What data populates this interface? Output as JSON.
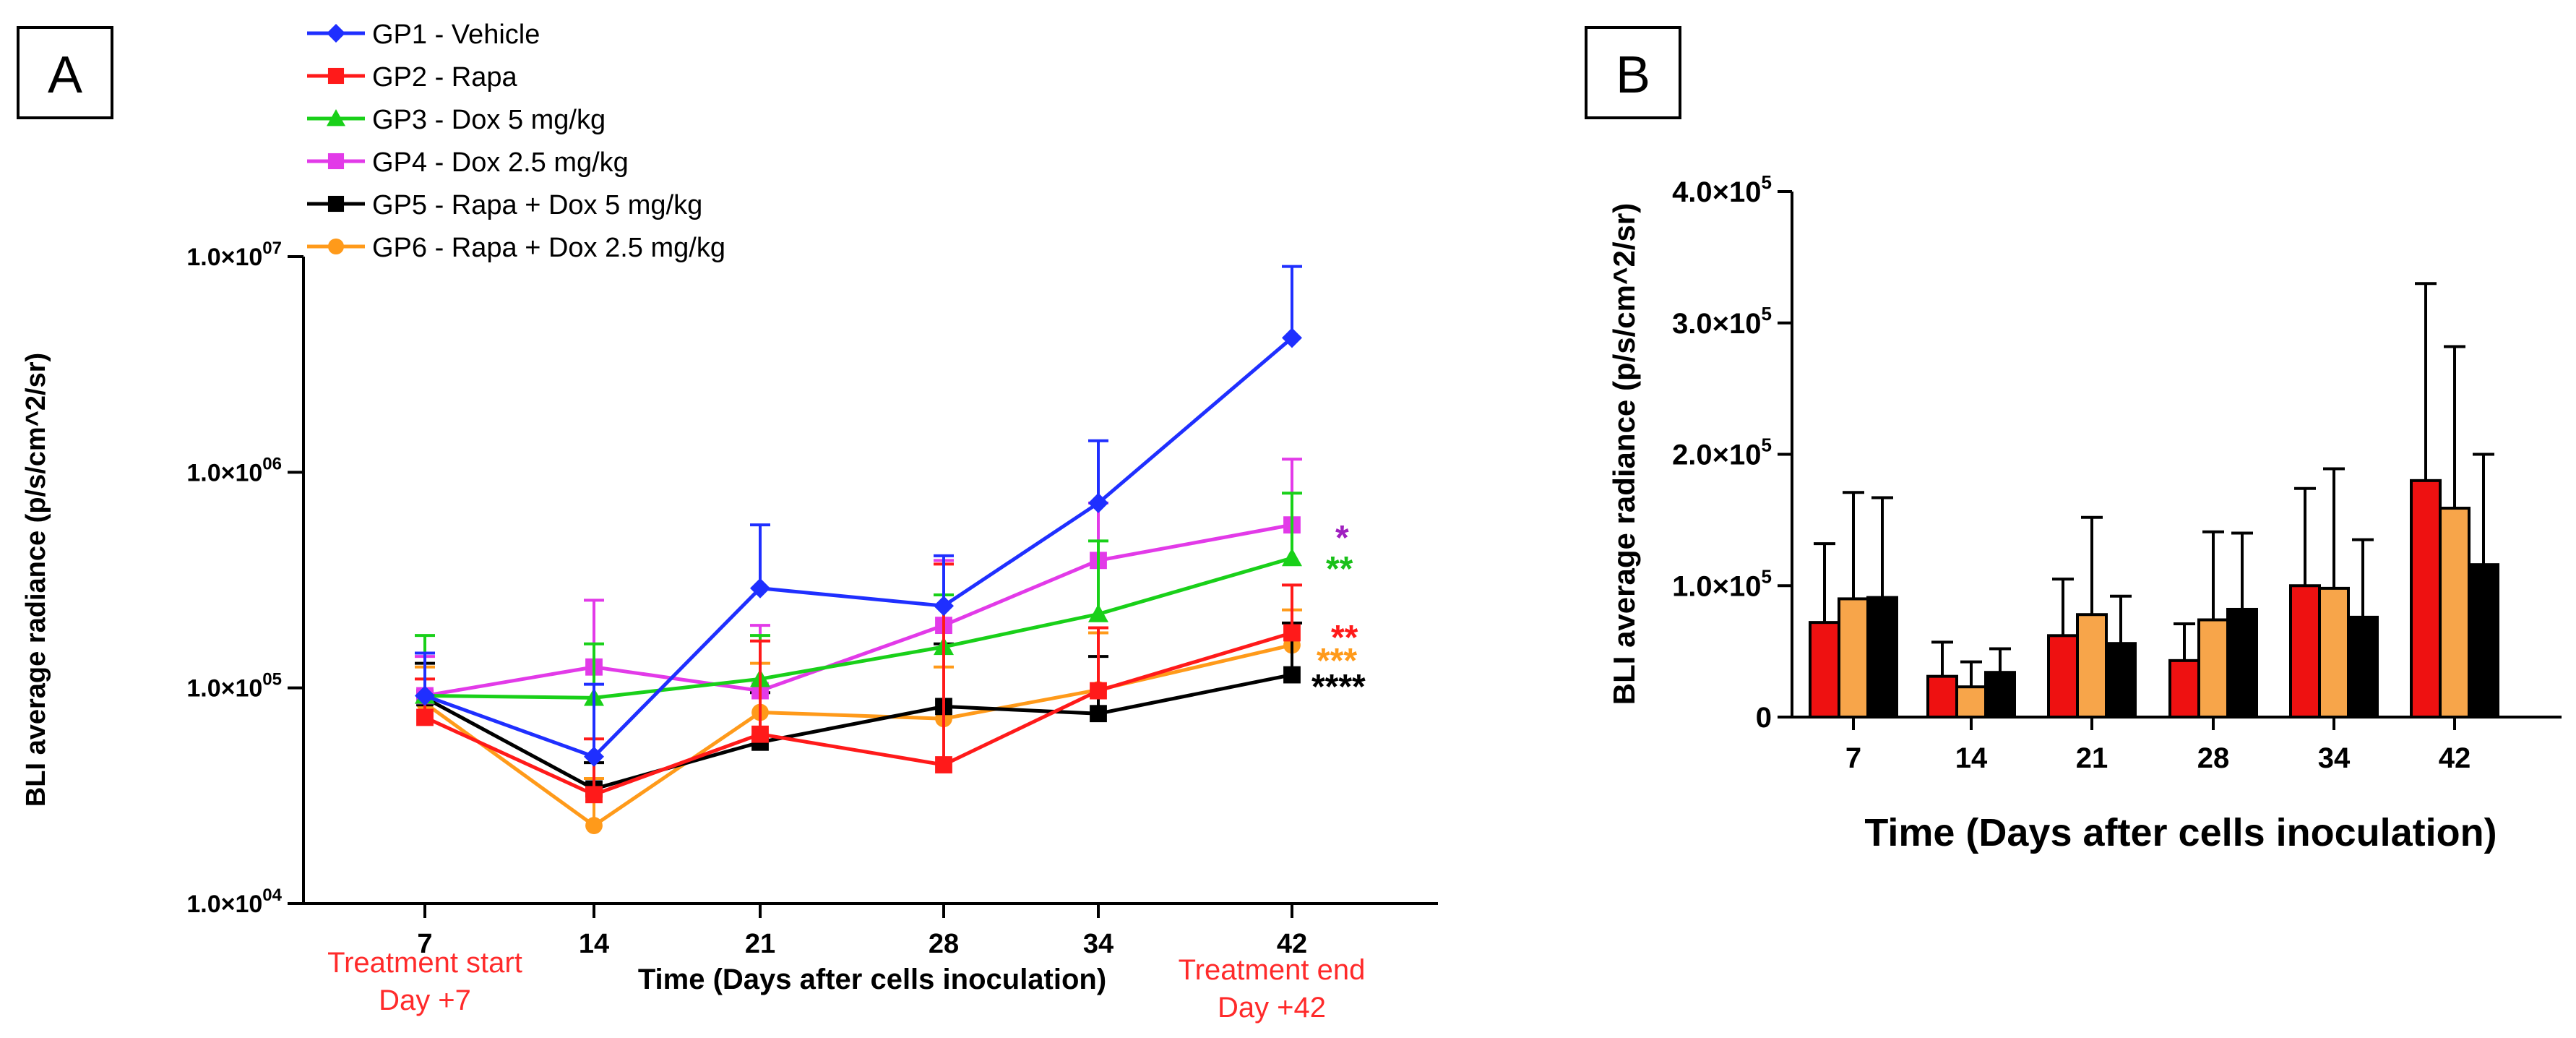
{
  "chart_data": [
    {
      "panel": "A",
      "type": "line",
      "yscale": "log",
      "ylabel": "BLI average radiance (p/s/cm^2/sr)",
      "xlabel": "Time (Days after cells inoculation)",
      "y_ticks": [
        {
          "value": 10000,
          "label": "1.0×10",
          "exp": "04"
        },
        {
          "value": 100000,
          "label": "1.0×10",
          "exp": "05"
        },
        {
          "value": 1000000,
          "label": "1.0×10",
          "exp": "06"
        },
        {
          "value": 10000000,
          "label": "1.0×10",
          "exp": "07"
        }
      ],
      "x": [
        7,
        14,
        21,
        28,
        34,
        42
      ],
      "x_labels": [
        "7",
        "14",
        "21",
        "28",
        "34",
        "42"
      ],
      "annotations": {
        "start": [
          "Treatment start",
          "Day +7"
        ],
        "end": [
          "Treatment end",
          "Day +42"
        ]
      },
      "series": [
        {
          "name": "GP1 - Vehicle",
          "color": "#1f2fff",
          "marker": "diamond",
          "values": [
            92000,
            48000,
            290000,
            240000,
            720000,
            4200000
          ],
          "errors": [
            145000,
            104000,
            570000,
            410000,
            1400000,
            9000000
          ],
          "sig": ""
        },
        {
          "name": "GP2 - Rapa",
          "color": "#ff1a1a",
          "marker": "square",
          "values": [
            73000,
            32000,
            61000,
            44000,
            97000,
            180000
          ],
          "errors": [
            110000,
            58000,
            165000,
            375000,
            190000,
            300000
          ],
          "sig": "**"
        },
        {
          "name": "GP3 - Dox 5 mg/kg",
          "color": "#19d019",
          "marker": "triangle",
          "values": [
            92000,
            90000,
            110000,
            155000,
            220000,
            400000
          ],
          "errors": [
            175000,
            160000,
            175000,
            270000,
            480000,
            800000
          ],
          "sig": "**"
        },
        {
          "name": "GP4 - Dox 2.5 mg/kg",
          "color": "#e23ae8",
          "marker": "square",
          "values": [
            92000,
            125000,
            97000,
            195000,
            390000,
            570000
          ],
          "errors": [
            140000,
            255000,
            195000,
            390000,
            720000,
            1150000
          ],
          "sig": "*"
        },
        {
          "name": "GP5 - Rapa + Dox 5 mg/kg",
          "color": "#000000",
          "marker": "square",
          "values": [
            90000,
            34000,
            56000,
            82000,
            76000,
            115000
          ],
          "errors": [
            130000,
            45000,
            95000,
            160000,
            140000,
            200000
          ],
          "sig": "****"
        },
        {
          "name": "GP6 - Rapa + Dox 2.5 mg/kg",
          "color": "#ff9a1a",
          "marker": "circle",
          "values": [
            85000,
            23000,
            77000,
            72000,
            98000,
            158000
          ],
          "errors": [
            125000,
            38000,
            130000,
            125000,
            180000,
            230000
          ],
          "sig": "***"
        }
      ],
      "sig_colors": {
        "GP4": "#a020c0",
        "GP3": "#19c019",
        "GP2": "#ff1a1a",
        "GP6": "#ff9a1a",
        "GP5": "#000000"
      }
    },
    {
      "panel": "B",
      "type": "bar",
      "ylabel": "BLI average radiance (p/s/cm^2/sr)",
      "xlabel": "Time (Days after cells inoculation)",
      "ylim": [
        0,
        400000
      ],
      "y_ticks": [
        {
          "value": 0,
          "label": "0",
          "exp": ""
        },
        {
          "value": 100000,
          "label": "1.0×10",
          "exp": "5"
        },
        {
          "value": 200000,
          "label": "2.0×10",
          "exp": "5"
        },
        {
          "value": 300000,
          "label": "3.0×10",
          "exp": "5"
        },
        {
          "value": 400000,
          "label": "4.0×10",
          "exp": "5"
        }
      ],
      "categories": [
        "7",
        "14",
        "21",
        "28",
        "34",
        "42"
      ],
      "series": [
        {
          "name": "GP2 - Rapa",
          "color": "#ee1111",
          "values": [
            72000,
            31000,
            62000,
            43000,
            100000,
            180000
          ],
          "errors": [
            132000,
            57000,
            105000,
            71000,
            174000,
            330000
          ]
        },
        {
          "name": "GP6 - Rapa + Dox 2.5 mg/kg",
          "color": "#f7a54a",
          "values": [
            90000,
            23000,
            78000,
            74000,
            98000,
            159000
          ],
          "errors": [
            171000,
            42000,
            152000,
            141000,
            189000,
            282000
          ]
        },
        {
          "name": "GP5 - Rapa + Dox 5 mg/kg",
          "color": "#000000",
          "values": [
            91000,
            34000,
            56000,
            82000,
            76000,
            116000
          ],
          "errors": [
            167000,
            52000,
            92000,
            140000,
            135000,
            200000
          ]
        }
      ]
    }
  ],
  "panels": {
    "a_label": "A",
    "b_label": "B"
  }
}
